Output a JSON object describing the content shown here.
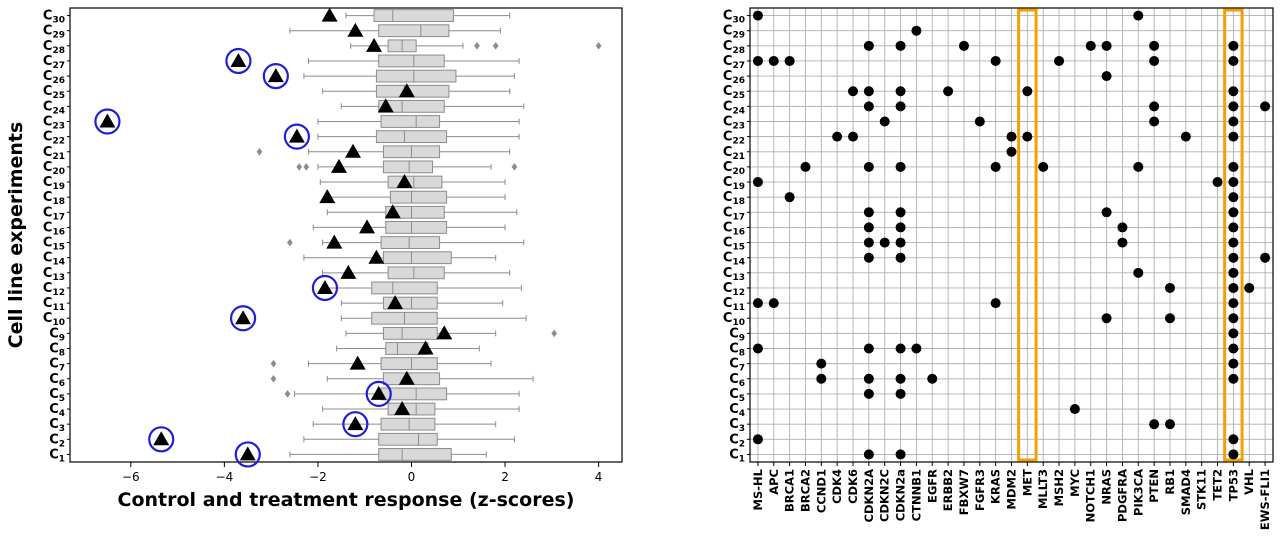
{
  "chart_data": [
    {
      "type": "box",
      "xlabel": "Control and treatment response (z-scores)",
      "ylabel": "Cell line experiments",
      "xlim": [
        -7.3,
        4.5
      ],
      "x_ticks": [
        -6,
        -4,
        -2,
        0,
        2,
        4
      ],
      "x_tick_labels": [
        "−6",
        "−4",
        "−2",
        "0",
        "2",
        "4"
      ],
      "categories": [
        "C1",
        "C2",
        "C3",
        "C4",
        "C5",
        "C6",
        "C7",
        "C8",
        "C9",
        "C10",
        "C11",
        "C12",
        "C13",
        "C14",
        "C15",
        "C16",
        "C17",
        "C18",
        "C19",
        "C20",
        "C21",
        "C22",
        "C23",
        "C24",
        "C25",
        "C26",
        "C27",
        "C28",
        "C29",
        "C30"
      ],
      "grid": false,
      "box_color": "#d9d9d9",
      "marker_color": "#000000",
      "circle_color": "#1f1fd6",
      "outlier_color": "#8c8c8c",
      "boxes": [
        {
          "whislo": -2.6,
          "q1": -0.7,
          "med": -0.2,
          "q3": 0.85,
          "whishi": 1.6,
          "fliers": []
        },
        {
          "whislo": -2.3,
          "q1": -0.7,
          "med": 0.15,
          "q3": 0.55,
          "whishi": 2.2,
          "fliers": []
        },
        {
          "whislo": -2.1,
          "q1": -0.65,
          "med": -0.05,
          "q3": 0.5,
          "whishi": 1.8,
          "fliers": []
        },
        {
          "whislo": -1.9,
          "q1": -0.5,
          "med": 0.1,
          "q3": 0.5,
          "whishi": 2.3,
          "fliers": []
        },
        {
          "whislo": -2.5,
          "q1": -0.65,
          "med": 0.1,
          "q3": 0.75,
          "whishi": 2.3,
          "fliers": [
            -2.65
          ]
        },
        {
          "whislo": -1.8,
          "q1": -0.6,
          "med": -0.1,
          "q3": 0.6,
          "whishi": 2.6,
          "fliers": [
            -2.95
          ]
        },
        {
          "whislo": -2.2,
          "q1": -0.65,
          "med": 0.0,
          "q3": 0.55,
          "whishi": 1.7,
          "fliers": [
            -2.95
          ]
        },
        {
          "whislo": -1.6,
          "q1": -0.55,
          "med": -0.3,
          "q3": 0.35,
          "whishi": 1.45,
          "fliers": []
        },
        {
          "whislo": -1.4,
          "q1": -0.6,
          "med": -0.2,
          "q3": 0.55,
          "whishi": 1.8,
          "fliers": [
            3.05
          ]
        },
        {
          "whislo": -1.5,
          "q1": -0.85,
          "med": -0.15,
          "q3": 0.55,
          "whishi": 2.45,
          "fliers": []
        },
        {
          "whislo": -1.5,
          "q1": -0.6,
          "med": 0.0,
          "q3": 0.55,
          "whishi": 1.95,
          "fliers": []
        },
        {
          "whislo": -1.9,
          "q1": -0.85,
          "med": -0.4,
          "q3": 0.55,
          "whishi": 2.35,
          "fliers": []
        },
        {
          "whislo": -1.9,
          "q1": -0.5,
          "med": 0.05,
          "q3": 0.7,
          "whishi": 2.1,
          "fliers": []
        },
        {
          "whislo": -2.3,
          "q1": -0.6,
          "med": 0.0,
          "q3": 0.85,
          "whishi": 1.8,
          "fliers": []
        },
        {
          "whislo": -1.9,
          "q1": -0.65,
          "med": -0.05,
          "q3": 0.6,
          "whishi": 2.4,
          "fliers": [
            -2.6
          ]
        },
        {
          "whislo": -2.1,
          "q1": -0.55,
          "med": 0.0,
          "q3": 0.75,
          "whishi": 2.0,
          "fliers": []
        },
        {
          "whislo": -1.8,
          "q1": -0.55,
          "med": 0.0,
          "q3": 0.7,
          "whishi": 2.25,
          "fliers": []
        },
        {
          "whislo": -1.8,
          "q1": -0.45,
          "med": 0.0,
          "q3": 0.75,
          "whishi": 2.0,
          "fliers": []
        },
        {
          "whislo": -1.95,
          "q1": -0.5,
          "med": 0.05,
          "q3": 0.65,
          "whishi": 2.0,
          "fliers": []
        },
        {
          "whislo": -2.0,
          "q1": -0.6,
          "med": -0.05,
          "q3": 0.45,
          "whishi": 1.7,
          "fliers": [
            -2.4,
            -2.25,
            2.2
          ]
        },
        {
          "whislo": -2.2,
          "q1": -0.6,
          "med": 0.0,
          "q3": 0.6,
          "whishi": 2.1,
          "fliers": [
            -3.25
          ]
        },
        {
          "whislo": -2.0,
          "q1": -0.75,
          "med": -0.15,
          "q3": 0.75,
          "whishi": 2.3,
          "fliers": []
        },
        {
          "whislo": -2.0,
          "q1": -0.65,
          "med": 0.1,
          "q3": 0.6,
          "whishi": 2.3,
          "fliers": []
        },
        {
          "whislo": -1.5,
          "q1": -0.7,
          "med": -0.2,
          "q3": 0.7,
          "whishi": 2.4,
          "fliers": []
        },
        {
          "whislo": -1.9,
          "q1": -0.75,
          "med": -0.15,
          "q3": 0.8,
          "whishi": 2.1,
          "fliers": []
        },
        {
          "whislo": -2.3,
          "q1": -0.75,
          "med": 0.05,
          "q3": 0.95,
          "whishi": 2.2,
          "fliers": []
        },
        {
          "whislo": -2.2,
          "q1": -0.7,
          "med": 0.05,
          "q3": 0.7,
          "whishi": 2.3,
          "fliers": []
        },
        {
          "whislo": -1.3,
          "q1": -0.5,
          "med": -0.2,
          "q3": 0.1,
          "whishi": 1.1,
          "fliers": [
            1.4,
            1.8,
            4.0
          ]
        },
        {
          "whislo": -2.6,
          "q1": -0.7,
          "med": 0.2,
          "q3": 0.8,
          "whishi": 1.9,
          "fliers": []
        },
        {
          "whislo": -1.4,
          "q1": -0.8,
          "med": -0.4,
          "q3": 0.9,
          "whishi": 2.1,
          "fliers": []
        }
      ],
      "triangles": [
        -3.5,
        -5.35,
        -1.2,
        -0.2,
        -0.7,
        -0.1,
        -1.15,
        0.3,
        0.7,
        -3.6,
        -0.35,
        -1.85,
        -1.35,
        -0.75,
        -1.65,
        -0.95,
        -0.4,
        -1.8,
        -0.15,
        -1.55,
        -1.25,
        -2.45,
        -6.5,
        -0.55,
        -0.1,
        -2.9,
        -3.7,
        -0.8,
        -1.2,
        -1.75
      ],
      "circled": [
        true,
        true,
        true,
        false,
        true,
        false,
        false,
        false,
        false,
        true,
        false,
        true,
        false,
        false,
        false,
        false,
        false,
        false,
        false,
        false,
        false,
        true,
        true,
        false,
        false,
        true,
        true,
        false,
        false,
        false
      ]
    },
    {
      "type": "scatter",
      "categories": [
        "C1",
        "C2",
        "C3",
        "C4",
        "C5",
        "C6",
        "C7",
        "C8",
        "C9",
        "C10",
        "C11",
        "C12",
        "C13",
        "C14",
        "C15",
        "C16",
        "C17",
        "C18",
        "C19",
        "C20",
        "C21",
        "C22",
        "C23",
        "C24",
        "C25",
        "C26",
        "C27",
        "C28",
        "C29",
        "C30"
      ],
      "genes": [
        "MS-HL",
        "APC",
        "BRCA1",
        "BRCA2",
        "CCND1",
        "CDK4",
        "CDK6",
        "CDKN2A",
        "CDKN2C",
        "CDKN2a",
        "CTNNB1",
        "EGFR",
        "ERBB2",
        "FBXW7",
        "FGFR3",
        "KRAS",
        "MDM2",
        "MET",
        "MLLT3",
        "MSH2",
        "MYC",
        "NOTCH1",
        "NRAS",
        "PDGFRA",
        "PIK3CA",
        "PTEN",
        "RB1",
        "SMAD4",
        "STK11",
        "TET2",
        "TP53",
        "VHL",
        "EWS-FLI1"
      ],
      "highlight_genes": [
        "MET",
        "TP53"
      ],
      "highlight_color": "#f5a000",
      "grid": true,
      "grid_color": "#b0b0b0",
      "points": {
        "C1": [
          "CDKN2A",
          "CDKN2a",
          "TP53"
        ],
        "C2": [
          "MS-HL",
          "TP53"
        ],
        "C3": [
          "PTEN",
          "RB1"
        ],
        "C4": [
          "MYC"
        ],
        "C5": [
          "CDKN2A",
          "CDKN2a"
        ],
        "C6": [
          "CCND1",
          "CDKN2A",
          "CDKN2a",
          "EGFR",
          "TP53"
        ],
        "C7": [
          "CCND1",
          "TP53"
        ],
        "C8": [
          "MS-HL",
          "CDKN2A",
          "CDKN2a",
          "CTNNB1",
          "TP53"
        ],
        "C9": [
          "TP53"
        ],
        "C10": [
          "NRAS",
          "RB1",
          "TP53"
        ],
        "C11": [
          "MS-HL",
          "APC",
          "KRAS",
          "TP53"
        ],
        "C12": [
          "RB1",
          "TP53",
          "VHL"
        ],
        "C13": [
          "PIK3CA",
          "TP53"
        ],
        "C14": [
          "CDKN2A",
          "CDKN2a",
          "TP53",
          "EWS-FLI1"
        ],
        "C15": [
          "CDKN2A",
          "CDKN2C",
          "CDKN2a",
          "PDGFRA",
          "TP53"
        ],
        "C16": [
          "CDKN2A",
          "CDKN2a",
          "PDGFRA",
          "TP53"
        ],
        "C17": [
          "CDKN2A",
          "CDKN2a",
          "NRAS",
          "TP53"
        ],
        "C18": [
          "BRCA1",
          "TP53"
        ],
        "C19": [
          "MS-HL",
          "TET2",
          "TP53"
        ],
        "C20": [
          "BRCA2",
          "CDKN2A",
          "CDKN2a",
          "KRAS",
          "MLLT3",
          "PIK3CA",
          "TP53"
        ],
        "C21": [
          "MDM2"
        ],
        "C22": [
          "CDK4",
          "CDK6",
          "MDM2",
          "MET",
          "SMAD4",
          "TP53"
        ],
        "C23": [
          "CDKN2C",
          "FGFR3",
          "PTEN",
          "TP53"
        ],
        "C24": [
          "CDKN2A",
          "CDKN2a",
          "PTEN",
          "TP53",
          "EWS-FLI1"
        ],
        "C25": [
          "CDK6",
          "CDKN2A",
          "CDKN2a",
          "ERBB2",
          "MET",
          "TP53"
        ],
        "C26": [
          "NRAS"
        ],
        "C27": [
          "MS-HL",
          "APC",
          "BRCA1",
          "KRAS",
          "MSH2",
          "PTEN",
          "TP53"
        ],
        "C28": [
          "CDKN2A",
          "CDKN2a",
          "FBXW7",
          "NOTCH1",
          "NRAS",
          "PTEN",
          "TP53"
        ],
        "C29": [
          "CTNNB1"
        ],
        "C30": [
          "MS-HL",
          "PIK3CA"
        ]
      }
    }
  ]
}
